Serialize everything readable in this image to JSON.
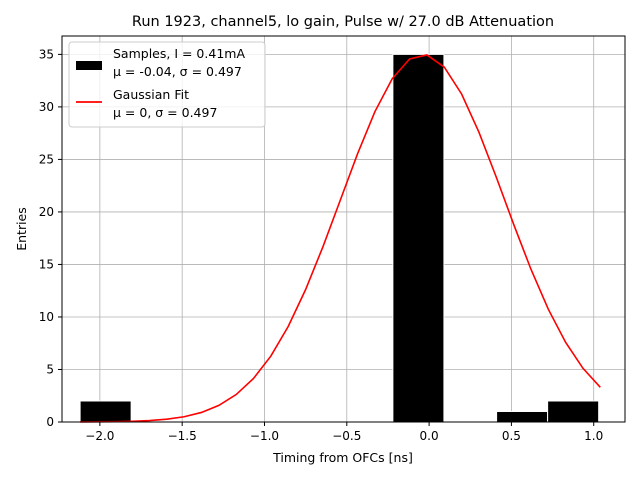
{
  "chart_data": {
    "type": "bar",
    "title": "Run 1923, channel5, lo gain, Pulse w/ 27.0 dB Attenuation",
    "xlabel": "Timing from OFCs [ns]",
    "ylabel": "Entries",
    "xlim": [
      -2.23,
      1.19
    ],
    "ylim": [
      0,
      36.75
    ],
    "xticks": [
      -2.0,
      -1.5,
      -1.0,
      -0.5,
      0.0,
      0.5,
      1.0
    ],
    "xtick_labels": [
      "−2.0",
      "−1.5",
      "−1.0",
      "−0.5",
      "0.0",
      "0.5",
      "1.0"
    ],
    "yticks": [
      0,
      5,
      10,
      15,
      20,
      25,
      30,
      35
    ],
    "ytick_labels": [
      "0",
      "5",
      "10",
      "15",
      "20",
      "25",
      "30",
      "35"
    ],
    "grid": true,
    "legend_position": "top-left",
    "bars": [
      {
        "x0": -2.12,
        "x1": -1.81,
        "value": 2
      },
      {
        "x0": -0.22,
        "x1": 0.09,
        "value": 35
      },
      {
        "x0": 0.41,
        "x1": 0.72,
        "value": 1
      },
      {
        "x0": 0.72,
        "x1": 1.03,
        "value": 2
      }
    ],
    "fit": {
      "mu": -0.04,
      "sigma": 0.497,
      "amplitude": 35,
      "x_range": [
        -2.12,
        1.04
      ],
      "color": "#ff0000"
    },
    "legend": [
      {
        "line1": "Samples, I = 0.41mA",
        "line2_mu": "μ = -0.04, ",
        "line2_sigma": "σ = 0.497",
        "color": "#000000",
        "kind": "bar"
      },
      {
        "line1": "Gaussian Fit",
        "line2_mu": "μ = 0, ",
        "line2_sigma": "σ = 0.497",
        "color": "#ff0000",
        "kind": "line"
      }
    ]
  }
}
